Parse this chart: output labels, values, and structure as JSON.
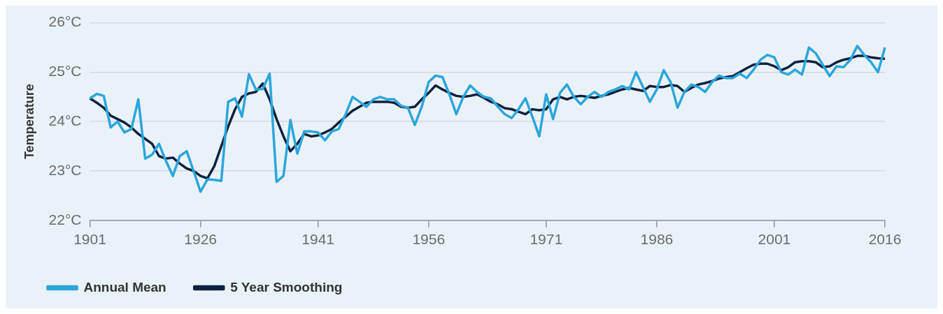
{
  "chart_data": {
    "type": "line",
    "ylabel": "Temperature",
    "categories": [
      "1901",
      null,
      null,
      null,
      null,
      null,
      null,
      null,
      null,
      null,
      null,
      null,
      null,
      null,
      null,
      null,
      "1926",
      null,
      null,
      null,
      null,
      null,
      null,
      null,
      null,
      null,
      null,
      null,
      null,
      null,
      null,
      null,
      null,
      "1941",
      null,
      null,
      null,
      null,
      null,
      null,
      null,
      null,
      null,
      null,
      null,
      null,
      null,
      null,
      null,
      "1956",
      null,
      null,
      null,
      null,
      null,
      null,
      null,
      null,
      null,
      null,
      null,
      null,
      null,
      null,
      null,
      null,
      "1971",
      null,
      null,
      null,
      null,
      null,
      null,
      null,
      null,
      null,
      null,
      null,
      null,
      null,
      null,
      null,
      "1986",
      null,
      null,
      null,
      null,
      null,
      null,
      null,
      null,
      null,
      null,
      null,
      null,
      null,
      null,
      null,
      null,
      "2001",
      null,
      null,
      null,
      null,
      null,
      null,
      null,
      null,
      null,
      null,
      null,
      null,
      null,
      null,
      null,
      "2016"
    ],
    "series": [
      {
        "name": "Annual Mean",
        "color": "#2ba6dc",
        "values": [
          24.47,
          24.56,
          24.52,
          23.88,
          24.0,
          23.78,
          23.85,
          24.45,
          23.25,
          23.33,
          23.55,
          23.2,
          22.9,
          23.3,
          23.4,
          23.0,
          22.58,
          22.83,
          22.82,
          22.8,
          24.4,
          24.47,
          24.1,
          24.96,
          24.65,
          24.66,
          24.97,
          22.78,
          22.9,
          24.03,
          23.35,
          23.8,
          23.8,
          23.78,
          23.62,
          23.8,
          23.85,
          24.15,
          24.5,
          24.4,
          24.3,
          24.45,
          24.5,
          24.45,
          24.45,
          24.32,
          24.28,
          23.93,
          24.3,
          24.8,
          24.93,
          24.9,
          24.55,
          24.15,
          24.5,
          24.73,
          24.6,
          24.5,
          24.47,
          24.3,
          24.15,
          24.07,
          24.25,
          24.47,
          24.1,
          23.7,
          24.55,
          24.05,
          24.58,
          24.75,
          24.5,
          24.35,
          24.5,
          24.6,
          24.5,
          24.6,
          24.65,
          24.72,
          24.65,
          25.0,
          24.7,
          24.4,
          24.65,
          25.04,
          24.8,
          24.28,
          24.6,
          24.75,
          24.7,
          24.6,
          24.8,
          24.93,
          24.88,
          24.88,
          24.97,
          24.88,
          25.05,
          25.25,
          25.35,
          25.3,
          25.0,
          24.95,
          25.05,
          24.95,
          25.5,
          25.38,
          25.15,
          24.92,
          25.12,
          25.1,
          25.25,
          25.53,
          25.35,
          25.2,
          25.0,
          25.5
        ]
      },
      {
        "name": "5 Year Smoothing",
        "color": "#0d2240",
        "values": [
          24.47,
          24.38,
          24.28,
          24.12,
          24.05,
          23.98,
          23.88,
          23.75,
          23.65,
          23.55,
          23.3,
          23.25,
          23.27,
          23.15,
          23.05,
          23.0,
          22.9,
          22.85,
          23.1,
          23.5,
          23.9,
          24.25,
          24.5,
          24.57,
          24.6,
          24.77,
          24.45,
          24.05,
          23.7,
          23.4,
          23.55,
          23.75,
          23.7,
          23.72,
          23.78,
          23.85,
          23.98,
          24.1,
          24.22,
          24.3,
          24.38,
          24.4,
          24.4,
          24.4,
          24.38,
          24.3,
          24.28,
          24.3,
          24.45,
          24.58,
          24.73,
          24.65,
          24.58,
          24.52,
          24.5,
          24.52,
          24.55,
          24.48,
          24.4,
          24.35,
          24.27,
          24.25,
          24.2,
          24.15,
          24.25,
          24.23,
          24.25,
          24.45,
          24.5,
          24.45,
          24.5,
          24.52,
          24.5,
          24.48,
          24.52,
          24.55,
          24.6,
          24.65,
          24.68,
          24.65,
          24.62,
          24.72,
          24.7,
          24.7,
          24.74,
          24.72,
          24.6,
          24.68,
          24.75,
          24.78,
          24.82,
          24.87,
          24.9,
          24.92,
          25.0,
          25.08,
          25.15,
          25.17,
          25.17,
          25.12,
          25.04,
          25.1,
          25.2,
          25.22,
          25.22,
          25.2,
          25.1,
          25.12,
          25.2,
          25.25,
          25.28,
          25.33,
          25.33,
          25.3,
          25.28,
          25.27
        ]
      }
    ],
    "ylim": [
      22,
      26
    ],
    "yticks": [
      {
        "value": 22,
        "label": "22°C"
      },
      {
        "value": 23,
        "label": "23°C"
      },
      {
        "value": 24,
        "label": "24°C"
      },
      {
        "value": 25,
        "label": "25°C"
      },
      {
        "value": 26,
        "label": "26°C"
      }
    ],
    "grid": "y",
    "legend": "bottom left",
    "marker": "none",
    "line_style": "solid"
  }
}
